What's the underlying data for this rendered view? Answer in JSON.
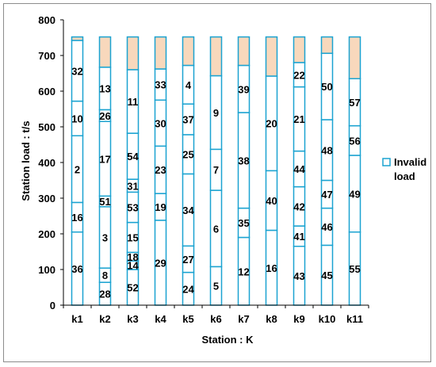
{
  "chart_data": {
    "type": "bar",
    "stacked": true,
    "xlabel": "Station : K",
    "ylabel": "Station load : t/s",
    "ylim": [
      0,
      800
    ],
    "yticks": [
      0,
      100,
      200,
      300,
      400,
      500,
      600,
      700,
      800
    ],
    "grid": false,
    "legend_position": "right",
    "categories": [
      "k1",
      "k2",
      "k3",
      "k4",
      "k5",
      "k6",
      "k7",
      "k8",
      "k9",
      "k10",
      "k11"
    ],
    "bar_top": 752,
    "stations": [
      {
        "name": "k1",
        "segments": [
          {
            "label": "36",
            "start": 0,
            "end": 205
          },
          {
            "label": "16",
            "start": 205,
            "end": 288
          },
          {
            "label": "2",
            "start": 288,
            "end": 475
          },
          {
            "label": "10",
            "start": 475,
            "end": 572
          },
          {
            "label": "32",
            "start": 572,
            "end": 742
          }
        ]
      },
      {
        "name": "k2",
        "segments": [
          {
            "label": "28",
            "start": 0,
            "end": 64
          },
          {
            "label": "8",
            "start": 64,
            "end": 104
          },
          {
            "label": "3",
            "start": 104,
            "end": 276
          },
          {
            "label": "51",
            "start": 276,
            "end": 306
          },
          {
            "label": "17",
            "start": 306,
            "end": 515
          },
          {
            "label": "26",
            "start": 515,
            "end": 548
          },
          {
            "label": "13",
            "start": 548,
            "end": 667
          }
        ]
      },
      {
        "name": "k3",
        "segments": [
          {
            "label": "52",
            "start": 0,
            "end": 100
          },
          {
            "label": "14",
            "start": 100,
            "end": 124
          },
          {
            "label": "18",
            "start": 124,
            "end": 148
          },
          {
            "label": "15",
            "start": 148,
            "end": 232
          },
          {
            "label": "53",
            "start": 232,
            "end": 317
          },
          {
            "label": "31",
            "start": 317,
            "end": 353
          },
          {
            "label": "54",
            "start": 353,
            "end": 482
          },
          {
            "label": "11",
            "start": 482,
            "end": 660
          }
        ]
      },
      {
        "name": "k4",
        "segments": [
          {
            "label": "29",
            "start": 0,
            "end": 238
          },
          {
            "label": "19",
            "start": 238,
            "end": 313
          },
          {
            "label": "23",
            "start": 313,
            "end": 446
          },
          {
            "label": "30",
            "start": 446,
            "end": 575
          },
          {
            "label": "33",
            "start": 575,
            "end": 662
          }
        ]
      },
      {
        "name": "k5",
        "segments": [
          {
            "label": "24",
            "start": 0,
            "end": 92
          },
          {
            "label": "27",
            "start": 92,
            "end": 166
          },
          {
            "label": "34",
            "start": 166,
            "end": 368
          },
          {
            "label": "25",
            "start": 368,
            "end": 478
          },
          {
            "label": "37",
            "start": 478,
            "end": 564
          },
          {
            "label": "4",
            "start": 564,
            "end": 672
          }
        ]
      },
      {
        "name": "k6",
        "segments": [
          {
            "label": "5",
            "start": 0,
            "end": 108
          },
          {
            "label": "6",
            "start": 108,
            "end": 322
          },
          {
            "label": "7",
            "start": 322,
            "end": 437
          },
          {
            "label": "9",
            "start": 437,
            "end": 643
          }
        ]
      },
      {
        "name": "k7",
        "segments": [
          {
            "label": "12",
            "start": 0,
            "end": 190
          },
          {
            "label": "35",
            "start": 190,
            "end": 272
          },
          {
            "label": "38",
            "start": 272,
            "end": 540
          },
          {
            "label": "39",
            "start": 540,
            "end": 672
          }
        ]
      },
      {
        "name": "k8",
        "segments": [
          {
            "label": "16",
            "start": 0,
            "end": 210
          },
          {
            "label": "40",
            "start": 210,
            "end": 377
          },
          {
            "label": "20",
            "start": 377,
            "end": 642
          }
        ]
      },
      {
        "name": "k9",
        "segments": [
          {
            "label": "43",
            "start": 0,
            "end": 165
          },
          {
            "label": "41",
            "start": 165,
            "end": 222
          },
          {
            "label": "42",
            "start": 222,
            "end": 332
          },
          {
            "label": "44",
            "start": 332,
            "end": 432
          },
          {
            "label": "21",
            "start": 432,
            "end": 612
          },
          {
            "label": "22",
            "start": 612,
            "end": 680
          }
        ]
      },
      {
        "name": "k10",
        "segments": [
          {
            "label": "45",
            "start": 0,
            "end": 168
          },
          {
            "label": "46",
            "start": 168,
            "end": 272
          },
          {
            "label": "47",
            "start": 272,
            "end": 350
          },
          {
            "label": "48",
            "start": 350,
            "end": 520
          },
          {
            "label": "50",
            "start": 520,
            "end": 706
          }
        ]
      },
      {
        "name": "k11",
        "segments": [
          {
            "label": "55",
            "start": 0,
            "end": 205
          },
          {
            "label": "49",
            "start": 205,
            "end": 420
          },
          {
            "label": "56",
            "start": 420,
            "end": 503
          },
          {
            "label": "57",
            "start": 503,
            "end": 635
          }
        ]
      }
    ],
    "legend": [
      {
        "label": "Invalid load"
      }
    ],
    "colors": {
      "bar_fill": "#ffffff",
      "bar_border": "#1ba3d1",
      "invalid_fill": "#f8d8bc",
      "axis": "#000000"
    }
  }
}
